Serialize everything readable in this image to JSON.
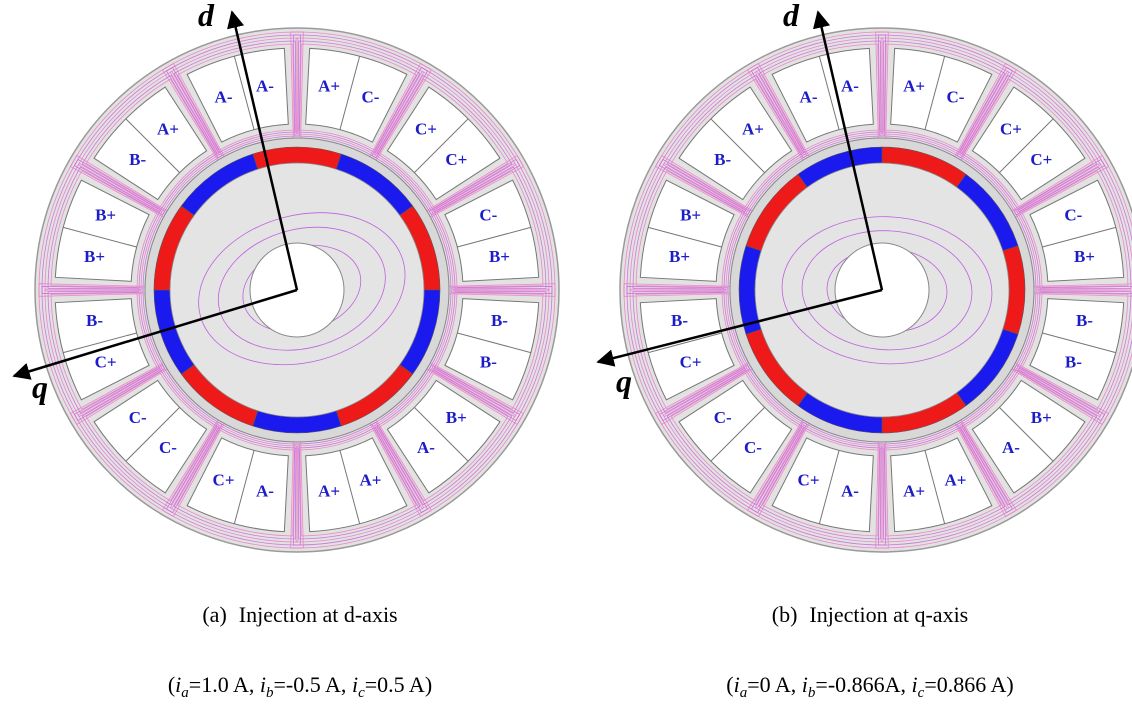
{
  "panels": [
    {
      "axis_labels": {
        "d": "d",
        "q": "q"
      },
      "slots": [
        [
          "A+",
          "C-"
        ],
        [
          "C+",
          "C+"
        ],
        [
          "C-",
          "B+"
        ],
        [
          "B-",
          "B-"
        ],
        [
          "B+",
          "A-"
        ],
        [
          "A+",
          "A+"
        ],
        [
          "A-",
          "C+"
        ],
        [
          "C-",
          "C-"
        ],
        [
          "C+",
          "B-"
        ],
        [
          "B+",
          "B+"
        ],
        [
          "B-",
          "A+"
        ],
        [
          "A-",
          "A-"
        ]
      ],
      "caption": {
        "label": "(a)",
        "text": "Injection at d-axis"
      },
      "currents": {
        "prefix": "(",
        "terms": [
          {
            "var": "i",
            "sub": "a",
            "rest": "=1.0 A, "
          },
          {
            "var": "i",
            "sub": "b",
            "rest": "=-0.5 A, "
          },
          {
            "var": "i",
            "sub": "c",
            "rest": "=0.5 A)"
          }
        ]
      }
    },
    {
      "axis_labels": {
        "d": "d",
        "q": "q"
      },
      "slots": [
        [
          "A+",
          "C-"
        ],
        [
          "C+",
          "C+"
        ],
        [
          "C-",
          "B+"
        ],
        [
          "B-",
          "B-"
        ],
        [
          "B+",
          "A-"
        ],
        [
          "A+",
          "A+"
        ],
        [
          "A-",
          "C+"
        ],
        [
          "C-",
          "C-"
        ],
        [
          "C+",
          "B-"
        ],
        [
          "B+",
          "B+"
        ],
        [
          "B-",
          "A+"
        ],
        [
          "A-",
          "A-"
        ]
      ],
      "caption": {
        "label": "(b)",
        "text": "Injection at q-axis"
      },
      "currents": {
        "prefix": "(",
        "terms": [
          {
            "var": "i",
            "sub": "a",
            "rest": "=0 A, "
          },
          {
            "var": "i",
            "sub": "b",
            "rest": "=-0.866A, "
          },
          {
            "var": "i",
            "sub": "c",
            "rest": "=0.866 A)"
          }
        ]
      }
    }
  ]
}
